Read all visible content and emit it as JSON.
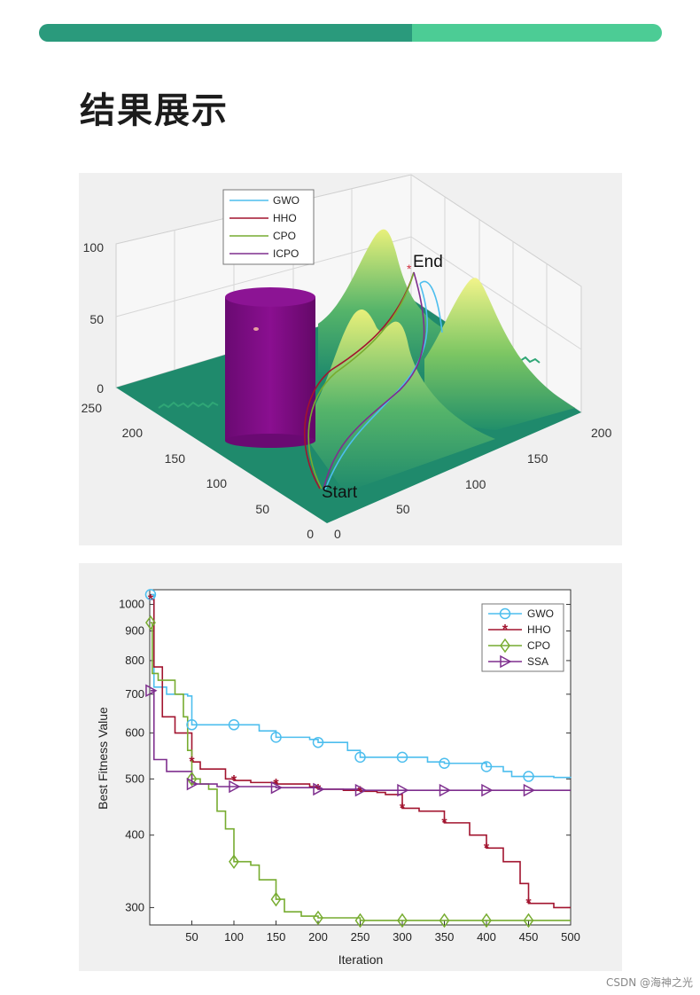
{
  "page": {
    "title": "结果展示",
    "watermark": "CSDN @海神之光"
  },
  "colors": {
    "accent_dark": "#2a9a7c",
    "accent_light": "#4ccc95",
    "gwo": "#4dbeee",
    "hho": "#a2142f",
    "cpo": "#77ac30",
    "icpo": "#7e2f8e",
    "obstacle": "#7a0a80",
    "terrain_low": "#1f8a6c",
    "terrain_high": "#e8f07a"
  },
  "chart_data": [
    {
      "type": "surface3d",
      "title": "",
      "legend": [
        "GWO",
        "HHO",
        "CPO",
        "ICPO"
      ],
      "legend_placement": "top-left",
      "axes": {
        "x": {
          "ticks": [
            "0",
            "50",
            "100",
            "150",
            "200"
          ],
          "range": [
            0,
            200
          ]
        },
        "y": {
          "ticks": [
            "0",
            "50",
            "100",
            "150",
            "200",
            "250"
          ],
          "range": [
            0,
            250
          ]
        },
        "z": {
          "ticks": [
            "0",
            "50",
            "100"
          ],
          "range": [
            0,
            100
          ]
        }
      },
      "annotations": [
        "Start",
        "End"
      ],
      "obstacle": "cylinder"
    },
    {
      "type": "line",
      "xlabel": "Iteration",
      "ylabel": "Best Fitness Value",
      "xticks": [
        "50",
        "100",
        "150",
        "200",
        "250",
        "300",
        "350",
        "400",
        "450",
        "500"
      ],
      "yticks": [
        "300",
        "400",
        "500",
        "600",
        "700",
        "800",
        "900",
        "1000"
      ],
      "xlim": [
        0,
        500
      ],
      "ylim": [
        280,
        1060
      ],
      "yscale": "log",
      "legend_placement": "top-right",
      "series": [
        {
          "name": "GWO",
          "color": "#4dbeee",
          "marker": "circle",
          "points": [
            [
              1,
              1040
            ],
            [
              5,
              720
            ],
            [
              20,
              700
            ],
            [
              45,
              695
            ],
            [
              50,
              620
            ],
            [
              100,
              620
            ],
            [
              130,
              605
            ],
            [
              150,
              590
            ],
            [
              190,
              585
            ],
            [
              200,
              578
            ],
            [
              235,
              560
            ],
            [
              250,
              545
            ],
            [
              300,
              545
            ],
            [
              330,
              535
            ],
            [
              350,
              532
            ],
            [
              400,
              525
            ],
            [
              420,
              515
            ],
            [
              430,
              505
            ],
            [
              450,
              505
            ],
            [
              480,
              503
            ],
            [
              500,
              502
            ]
          ]
        },
        {
          "name": "HHO",
          "color": "#a2142f",
          "marker": "star",
          "points": [
            [
              1,
              1020
            ],
            [
              5,
              780
            ],
            [
              15,
              640
            ],
            [
              30,
              600
            ],
            [
              50,
              535
            ],
            [
              60,
              520
            ],
            [
              90,
              500
            ],
            [
              100,
              497
            ],
            [
              120,
              493
            ],
            [
              150,
              490
            ],
            [
              190,
              485
            ],
            [
              200,
              480
            ],
            [
              230,
              478
            ],
            [
              250,
              476
            ],
            [
              270,
              474
            ],
            [
              280,
              470
            ],
            [
              300,
              445
            ],
            [
              320,
              440
            ],
            [
              350,
              420
            ],
            [
              380,
              400
            ],
            [
              400,
              380
            ],
            [
              420,
              360
            ],
            [
              440,
              330
            ],
            [
              450,
              305
            ],
            [
              480,
              300
            ],
            [
              500,
              300
            ]
          ]
        },
        {
          "name": "CPO",
          "color": "#77ac30",
          "marker": "diamond",
          "points": [
            [
              1,
              930
            ],
            [
              3,
              760
            ],
            [
              10,
              740
            ],
            [
              25,
              740
            ],
            [
              30,
              700
            ],
            [
              40,
              640
            ],
            [
              45,
              560
            ],
            [
              50,
              500
            ],
            [
              60,
              490
            ],
            [
              70,
              480
            ],
            [
              80,
              440
            ],
            [
              90,
              410
            ],
            [
              100,
              360
            ],
            [
              120,
              355
            ],
            [
              130,
              335
            ],
            [
              150,
              310
            ],
            [
              160,
              295
            ],
            [
              180,
              290
            ],
            [
              200,
              288
            ],
            [
              240,
              288
            ],
            [
              250,
              285
            ],
            [
              300,
              285
            ],
            [
              350,
              285
            ],
            [
              400,
              285
            ],
            [
              450,
              285
            ],
            [
              500,
              285
            ]
          ]
        },
        {
          "name": "SSA",
          "color": "#7e2f8e",
          "marker": "triangle-right",
          "points": [
            [
              1,
              710
            ],
            [
              5,
              540
            ],
            [
              20,
              515
            ],
            [
              50,
              490
            ],
            [
              80,
              485
            ],
            [
              100,
              485
            ],
            [
              150,
              483
            ],
            [
              200,
              480
            ],
            [
              250,
              478
            ],
            [
              300,
              478
            ],
            [
              350,
              478
            ],
            [
              400,
              478
            ],
            [
              450,
              478
            ],
            [
              500,
              478
            ]
          ]
        }
      ],
      "marker_x": [
        1,
        50,
        100,
        150,
        200,
        250,
        300,
        350,
        400,
        450
      ]
    }
  ]
}
